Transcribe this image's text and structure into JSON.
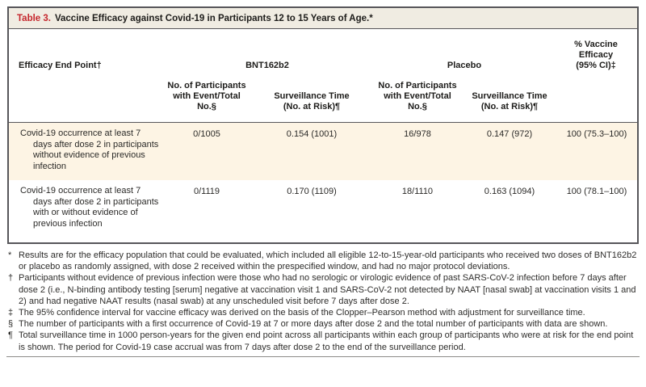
{
  "title": {
    "label": "Table 3.",
    "text": "Vaccine Efficacy against Covid-19 in Participants 12 to 15 Years of Age.*"
  },
  "colors": {
    "accent_red": "#c5262c",
    "title_bar_bg": "#f0ece2",
    "row_highlight_bg": "#fdf4e4",
    "border": "#57565a"
  },
  "header": {
    "endpoint": "Efficacy End Point†",
    "group_bnt": "BNT162b2",
    "group_placebo": "Placebo",
    "efficacy": "% Vaccine Efficacy\n(95% CI)‡",
    "sub_bnt_events": "No. of Participants\nwith Event/Total\nNo.§",
    "sub_bnt_surv": "Surveillance Time\n(No. at Risk)¶",
    "sub_placebo_events": "No. of Participants\nwith Event/Total\nNo.§",
    "sub_placebo_surv": "Surveillance Time\n(No. at Risk)¶"
  },
  "rows": [
    {
      "endpoint": "Covid-19 occurrence at least 7 days after dose 2 in participants without evidence of previous infection",
      "bnt_events": "0/1005",
      "bnt_surv": "0.154 (1001)",
      "placebo_events": "16/978",
      "placebo_surv": "0.147 (972)",
      "efficacy": "100 (75.3–100)"
    },
    {
      "endpoint": "Covid-19 occurrence at least 7 days after dose 2 in participants with or without evidence of previous infection",
      "bnt_events": "0/1119",
      "bnt_surv": "0.170 (1109)",
      "placebo_events": "18/1110",
      "placebo_surv": "0.163 (1094)",
      "efficacy": "100 (78.1–100)"
    }
  ],
  "footnotes": [
    {
      "symbol": "*",
      "text": "Results are for the efficacy population that could be evaluated, which included all eligible 12-to-15-year-old participants who received two doses of BNT162b2 or placebo as randomly assigned, with dose 2 received within the prespecified window, and had no major protocol deviations."
    },
    {
      "symbol": "†",
      "text": "Participants without evidence of previous infection were those who had no serologic or virologic evidence of past SARS-CoV-2 infection before 7 days after dose 2 (i.e., N-binding antibody testing [serum] negative at vaccination visit 1 and SARS-CoV-2 not detected by NAAT [nasal swab] at vaccination visits 1 and 2) and had negative NAAT results (nasal swab) at any unscheduled visit before 7 days after dose 2."
    },
    {
      "symbol": "‡",
      "text": "The 95% confidence interval for vaccine efficacy was derived on the basis of the Clopper–Pearson method with adjustment for surveillance time."
    },
    {
      "symbol": "§",
      "text": "The number of participants with a first occurrence of Covid-19 at 7 or more days after dose 2 and the total number of participants with data are shown."
    },
    {
      "symbol": "¶",
      "text": "Total surveillance time in 1000 person-years for the given end point across all participants within each group of participants who were at risk for the end point is shown. The period for Covid-19 case accrual was from 7 days after dose 2 to the end of the surveillance period."
    }
  ]
}
